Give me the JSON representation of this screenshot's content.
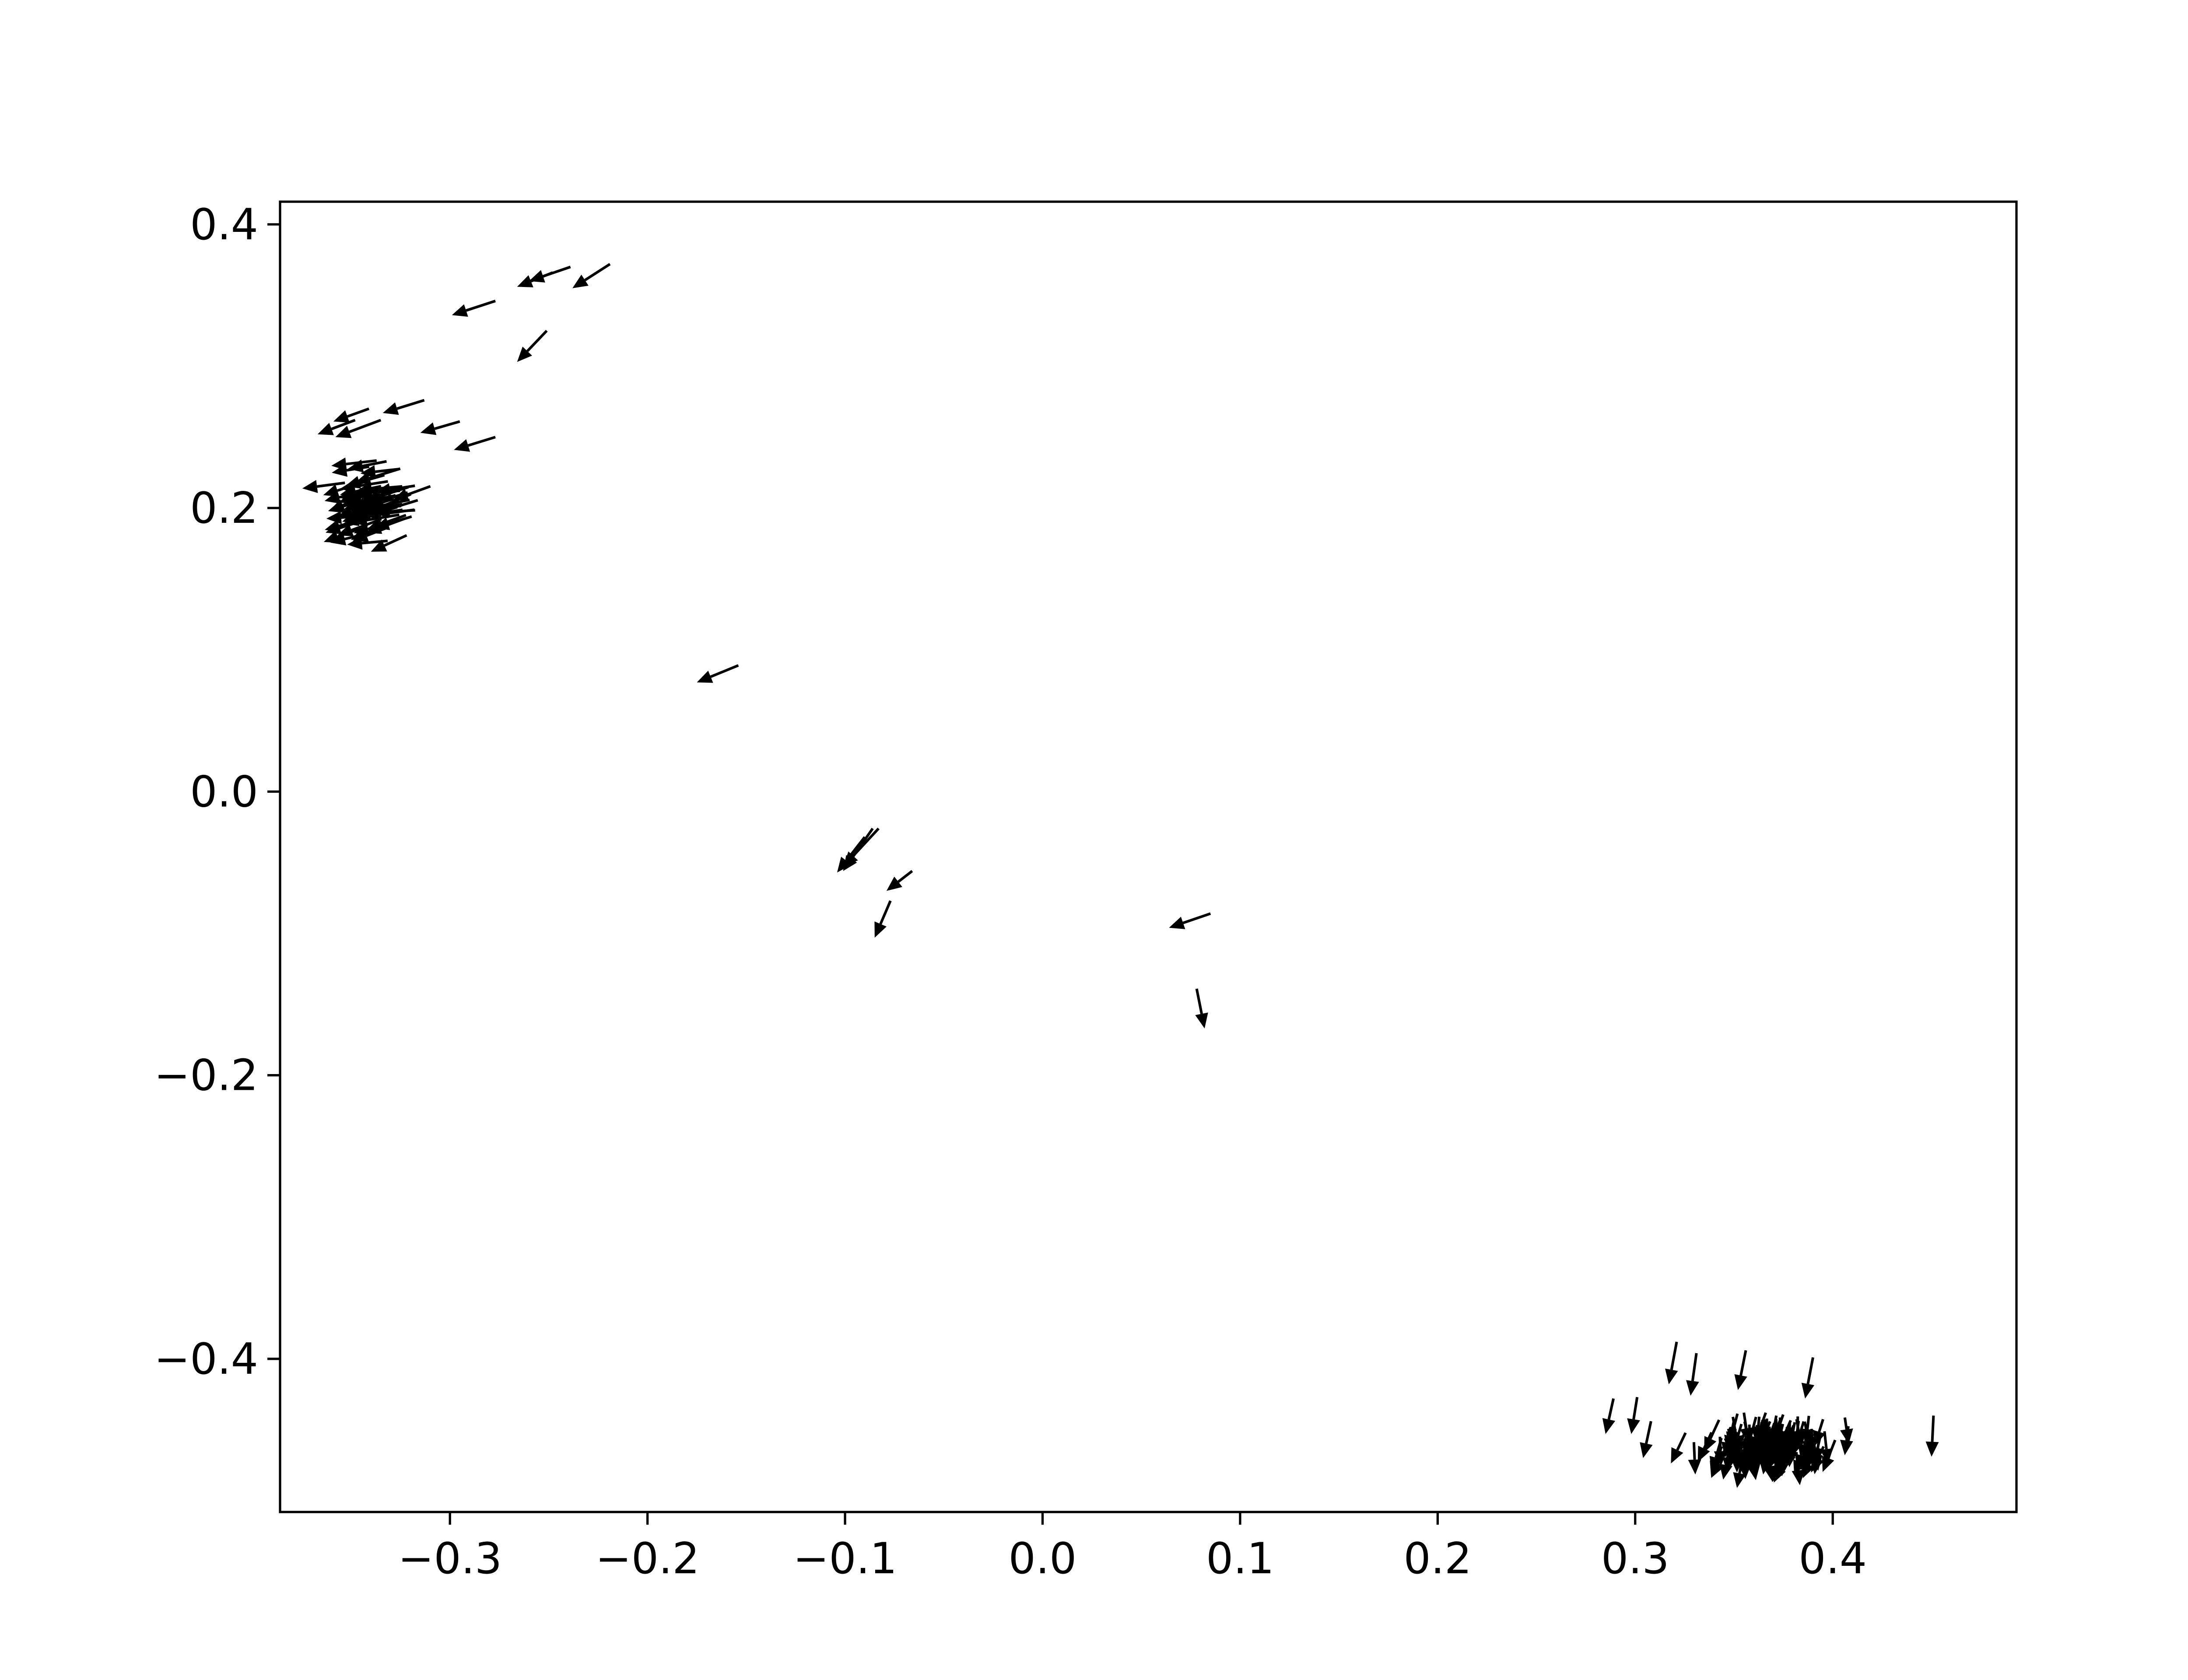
{
  "chart_data": {
    "type": "quiver",
    "title": "",
    "xlabel": "",
    "ylabel": "",
    "xlim": [
      -0.386,
      0.493
    ],
    "ylim": [
      -0.508,
      0.416
    ],
    "x_ticks": [
      -0.3,
      -0.2,
      -0.1,
      0.0,
      0.1,
      0.2,
      0.3,
      0.4
    ],
    "y_ticks": [
      -0.4,
      -0.2,
      0.0,
      0.2,
      0.4
    ],
    "x_tick_labels": [
      "−0.3",
      "−0.2",
      "−0.1",
      "0.0",
      "0.1",
      "0.2",
      "0.3",
      "0.4"
    ],
    "y_tick_labels": [
      "−0.4",
      "−0.2",
      "0.0",
      "0.2",
      "0.4"
    ],
    "grid": false,
    "legend": "none",
    "arrow_color": "#000000",
    "clusters": [
      {
        "name": "upper-left dense",
        "x_center": -0.33,
        "y_center": 0.205,
        "x_spread": 0.016,
        "y_spread": 0.025,
        "count": 60,
        "u": -0.021,
        "v": -0.007
      },
      {
        "name": "lower-right dense",
        "x_center": 0.37,
        "y_center": -0.452,
        "x_spread": 0.028,
        "y_spread": 0.013,
        "count": 130,
        "u": -0.002,
        "v": -0.022
      }
    ],
    "arrows": [
      {
        "x": -0.219,
        "y": 0.372,
        "u": -0.019,
        "v": -0.017
      },
      {
        "x": -0.239,
        "y": 0.37,
        "u": -0.021,
        "v": -0.01
      },
      {
        "x": -0.248,
        "y": 0.366,
        "u": -0.018,
        "v": -0.01
      },
      {
        "x": -0.277,
        "y": 0.346,
        "u": -0.022,
        "v": -0.01
      },
      {
        "x": -0.251,
        "y": 0.325,
        "u": -0.015,
        "v": -0.022
      },
      {
        "x": -0.313,
        "y": 0.276,
        "u": -0.021,
        "v": -0.009
      },
      {
        "x": -0.335,
        "y": 0.262,
        "u": -0.023,
        "v": -0.012
      },
      {
        "x": -0.341,
        "y": 0.27,
        "u": -0.018,
        "v": -0.009
      },
      {
        "x": -0.348,
        "y": 0.262,
        "u": -0.019,
        "v": -0.01
      },
      {
        "x": -0.295,
        "y": 0.261,
        "u": -0.02,
        "v": -0.008
      },
      {
        "x": -0.277,
        "y": 0.25,
        "u": -0.021,
        "v": -0.009
      },
      {
        "x": -0.154,
        "y": 0.089,
        "u": -0.021,
        "v": -0.012
      },
      {
        "x": -0.083,
        "y": -0.026,
        "u": -0.018,
        "v": -0.027
      },
      {
        "x": -0.086,
        "y": -0.026,
        "u": -0.015,
        "v": -0.03
      },
      {
        "x": -0.09,
        "y": -0.032,
        "u": -0.014,
        "v": -0.025
      },
      {
        "x": -0.066,
        "y": -0.056,
        "u": -0.013,
        "v": -0.014
      },
      {
        "x": -0.077,
        "y": -0.077,
        "u": -0.008,
        "v": -0.026
      },
      {
        "x": 0.085,
        "y": -0.086,
        "u": -0.021,
        "v": -0.01
      },
      {
        "x": 0.078,
        "y": -0.139,
        "u": 0.004,
        "v": -0.028
      },
      {
        "x": 0.289,
        "y": -0.428,
        "u": -0.004,
        "v": -0.025
      },
      {
        "x": 0.301,
        "y": -0.427,
        "u": -0.003,
        "v": -0.026
      },
      {
        "x": 0.308,
        "y": -0.444,
        "u": -0.004,
        "v": -0.026
      },
      {
        "x": 0.451,
        "y": -0.44,
        "u": -0.001,
        "v": -0.029
      },
      {
        "x": 0.331,
        "y": -0.396,
        "u": -0.003,
        "v": -0.03
      },
      {
        "x": 0.356,
        "y": -0.394,
        "u": -0.004,
        "v": -0.028
      },
      {
        "x": 0.39,
        "y": -0.399,
        "u": -0.004,
        "v": -0.029
      },
      {
        "x": 0.321,
        "y": -0.388,
        "u": -0.004,
        "v": -0.03
      }
    ]
  }
}
